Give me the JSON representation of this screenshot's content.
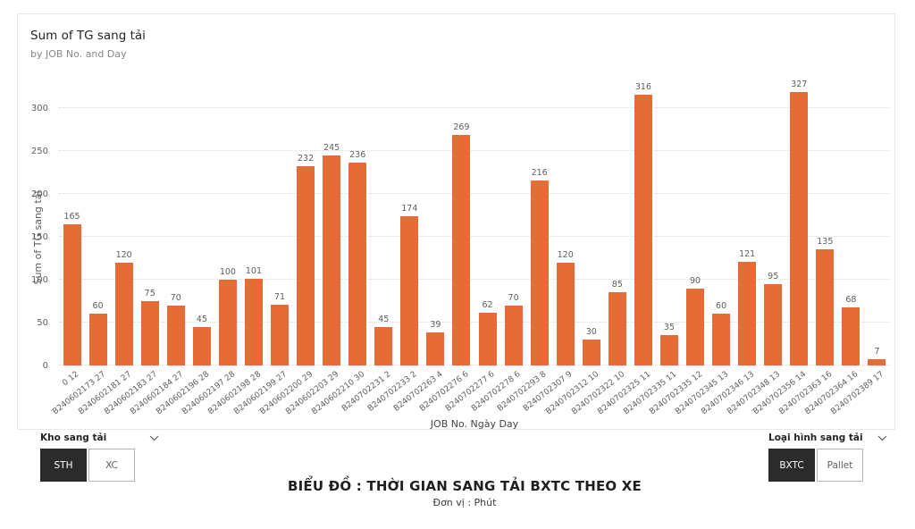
{
  "chart": {
    "title": "Sum of TG sang tải",
    "subtitle": "by JOB No. and Day"
  },
  "chart_data": {
    "type": "bar",
    "title": "Sum of TG sang tải",
    "subtitle": "by JOB No. and Day",
    "xlabel": "JOB No. Ngày Day",
    "ylabel": "Sum of TG sang tải",
    "ylim": [
      0,
      300
    ],
    "yticks": [
      0,
      50,
      100,
      150,
      200,
      250,
      300
    ],
    "grid": true,
    "legend": false,
    "categories": [
      "0 12",
      "B240602173 27",
      "B240602181 27",
      "B240602183 27",
      "B240602184 27",
      "B240602196 28",
      "B240602197 28",
      "B240602198 28",
      "B240602199 27",
      "B240602200 29",
      "B240602203 29",
      "B240602210 30",
      "B240702231 2",
      "B240702233 2",
      "B240702263 4",
      "B240702276 6",
      "B240702277 6",
      "B240702278 6",
      "B240702293 8",
      "B240702307 9",
      "B240702312 10",
      "B240702322 10",
      "B240702325 11",
      "B240702335 11",
      "B240702335 12",
      "B240702345 13",
      "B240702346 13",
      "B240702348 13",
      "B240702356 14",
      "B240702363 16",
      "B240702364 16",
      "B240702389 17"
    ],
    "values": [
      165,
      60,
      120,
      75,
      70,
      45,
      100,
      101,
      71,
      232,
      245,
      236,
      45,
      174,
      39,
      269,
      62,
      70,
      216,
      120,
      30,
      85,
      316,
      35,
      90,
      60,
      121,
      95,
      327,
      135,
      68,
      7
    ]
  },
  "slicers": {
    "kho_sang_tai": {
      "label": "Kho sang tải",
      "options": [
        {
          "label": "STH",
          "selected": true
        },
        {
          "label": "XC",
          "selected": false
        }
      ]
    },
    "loai_hinh_sang_tai": {
      "label": "Loại hình sang tải",
      "options": [
        {
          "label": "BXTC",
          "selected": true
        },
        {
          "label": "Pallet",
          "selected": false
        }
      ]
    }
  },
  "footer": {
    "title": "BIỂU ĐỒ : THỜI GIAN SANG TẢI BXTC  THEO XE",
    "subtitle": "Đơn vị : Phút"
  },
  "colors": {
    "bar": "#E66C37",
    "grid": "#DCDCDC",
    "data_label": "#605E5C",
    "selected_button_bg": "#2B2B2B"
  }
}
